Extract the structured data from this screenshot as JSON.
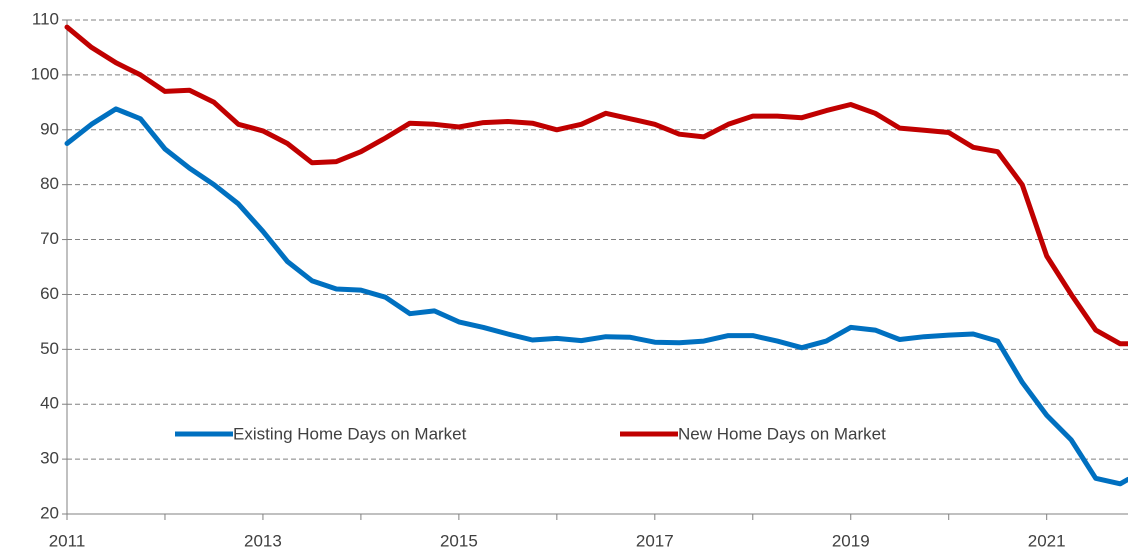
{
  "chart_data": {
    "type": "line",
    "x": [
      2011.0,
      2011.25,
      2011.5,
      2011.75,
      2012.0,
      2012.25,
      2012.5,
      2012.75,
      2013.0,
      2013.25,
      2013.5,
      2013.75,
      2014.0,
      2014.25,
      2014.5,
      2014.75,
      2015.0,
      2015.25,
      2015.5,
      2015.75,
      2016.0,
      2016.25,
      2016.5,
      2016.75,
      2017.0,
      2017.25,
      2017.5,
      2017.75,
      2018.0,
      2018.25,
      2018.5,
      2018.75,
      2019.0,
      2019.25,
      2019.5,
      2019.75,
      2020.0,
      2020.25,
      2020.5,
      2020.75,
      2021.0,
      2021.25,
      2021.5,
      2021.75,
      2021.83
    ],
    "series": [
      {
        "name": "Existing Home Days on Market",
        "color": "#0070c0",
        "values": [
          87.5,
          91,
          93.8,
          92,
          86.5,
          83,
          80,
          76.5,
          71.5,
          66,
          62.5,
          61,
          60.8,
          59.5,
          56.5,
          57,
          55,
          54,
          52.8,
          51.7,
          52,
          51.6,
          52.3,
          52.2,
          51.3,
          51.2,
          51.5,
          52.5,
          52.5,
          51.5,
          50.3,
          51.5,
          54,
          53.5,
          51.8,
          52.3,
          52.6,
          52.8,
          51.5,
          44,
          38,
          33.5,
          26.5,
          25.5,
          26.3
        ]
      },
      {
        "name": "New Home Days on Market",
        "color": "#c00000",
        "values": [
          108.7,
          105,
          102.2,
          100,
          97,
          97.2,
          95,
          91,
          89.8,
          87.5,
          84,
          84.2,
          86,
          88.5,
          91.2,
          91,
          90.5,
          91.3,
          91.5,
          91.2,
          90,
          91,
          93,
          92,
          91,
          89.2,
          88.7,
          91,
          92.5,
          92.5,
          92.2,
          93.5,
          94.6,
          93,
          90.3,
          89.9,
          89.5,
          86.8,
          86,
          80,
          67,
          60,
          53.5,
          51,
          51
        ]
      }
    ],
    "xlim": [
      2011,
      2021.83
    ],
    "xticks": [
      2011,
      2013,
      2015,
      2017,
      2019,
      2021
    ],
    "xminorticks": [
      2012,
      2014,
      2016,
      2018,
      2020
    ],
    "ylim": [
      20,
      110
    ],
    "yticks": [
      20,
      30,
      40,
      50,
      60,
      70,
      80,
      90,
      100,
      110
    ],
    "grid": true
  }
}
